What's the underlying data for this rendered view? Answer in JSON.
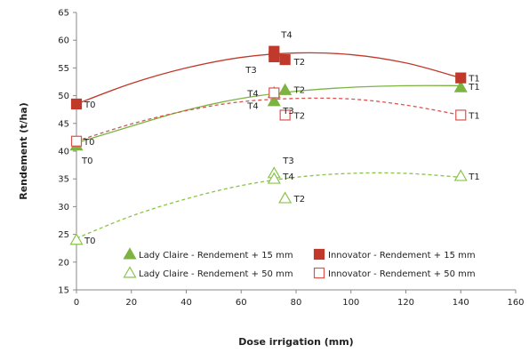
{
  "chart_data": {
    "type": "scatter",
    "xlabel": "Dose irrigation (mm)",
    "ylabel": "Rendement (t/ha)",
    "xlim": [
      0,
      160
    ],
    "ylim": [
      15,
      65
    ],
    "xticks": [
      0,
      20,
      40,
      60,
      80,
      100,
      120,
      140,
      160
    ],
    "yticks": [
      15,
      20,
      25,
      30,
      35,
      40,
      45,
      50,
      55,
      60,
      65
    ],
    "legend_position": "bottom-right",
    "series": [
      {
        "name": "Lady Claire - Rendement + 15 mm",
        "marker": "triangle-filled",
        "trend": "solid",
        "color": "#7cb342",
        "points": [
          {
            "x": 0,
            "y": 41.0,
            "label": "T0"
          },
          {
            "x": 140,
            "y": 51.5,
            "label": "T1"
          },
          {
            "x": 76,
            "y": 51.0,
            "label": "T2"
          },
          {
            "x": 72,
            "y": 49.0,
            "label": "T3"
          },
          {
            "x": 72,
            "y": 50.5,
            "label": "T4"
          }
        ],
        "trend_points": [
          [
            0,
            41.5
          ],
          [
            20,
            44.5
          ],
          [
            40,
            47.4
          ],
          [
            60,
            49.5
          ],
          [
            80,
            50.8
          ],
          [
            100,
            51.5
          ],
          [
            120,
            51.8
          ],
          [
            140,
            51.8
          ]
        ]
      },
      {
        "name": "Innovator - Rendement + 15 mm",
        "marker": "square-filled",
        "trend": "solid",
        "color": "#c0392b",
        "points": [
          {
            "x": 0,
            "y": 48.5,
            "label": "T0"
          },
          {
            "x": 140,
            "y": 53.2,
            "label": "T1"
          },
          {
            "x": 76,
            "y": 56.5,
            "label": "T2"
          },
          {
            "x": 72,
            "y": 57.0,
            "label": "T3"
          },
          {
            "x": 72,
            "y": 58.0,
            "label": "T4"
          }
        ],
        "trend_points": [
          [
            0,
            48.5
          ],
          [
            20,
            52.2
          ],
          [
            40,
            55.0
          ],
          [
            60,
            56.9
          ],
          [
            80,
            57.7
          ],
          [
            100,
            57.4
          ],
          [
            120,
            55.9
          ],
          [
            140,
            53.2
          ]
        ]
      },
      {
        "name": "Lady Claire - Rendement + 50 mm",
        "marker": "triangle-open",
        "trend": "dashed",
        "color": "#8bc34a",
        "points": [
          {
            "x": 0,
            "y": 24.0,
            "label": "T0"
          },
          {
            "x": 140,
            "y": 35.5,
            "label": "T1"
          },
          {
            "x": 76,
            "y": 31.5,
            "label": "T2"
          },
          {
            "x": 72,
            "y": 36.0,
            "label": "T3"
          },
          {
            "x": 72,
            "y": 35.0,
            "label": "T4"
          }
        ],
        "trend_points": [
          [
            0,
            24.3
          ],
          [
            20,
            28.3
          ],
          [
            40,
            31.4
          ],
          [
            60,
            33.8
          ],
          [
            80,
            35.3
          ],
          [
            100,
            36.0
          ],
          [
            120,
            36.0
          ],
          [
            140,
            35.3
          ]
        ]
      },
      {
        "name": "Innovator - Rendement + 50 mm",
        "marker": "square-open",
        "trend": "dashed",
        "color": "#d9534f",
        "points": [
          {
            "x": 0,
            "y": 41.8,
            "label": "T0"
          },
          {
            "x": 140,
            "y": 46.5,
            "label": "T1"
          },
          {
            "x": 76,
            "y": 46.5,
            "label": "T2"
          },
          {
            "x": 72,
            "y": 50.5,
            "label": "T4"
          }
        ],
        "trend_points": [
          [
            0,
            41.8
          ],
          [
            20,
            44.9
          ],
          [
            40,
            47.3
          ],
          [
            60,
            48.9
          ],
          [
            80,
            49.5
          ],
          [
            100,
            49.4
          ],
          [
            120,
            48.3
          ],
          [
            140,
            46.5
          ]
        ]
      }
    ]
  }
}
